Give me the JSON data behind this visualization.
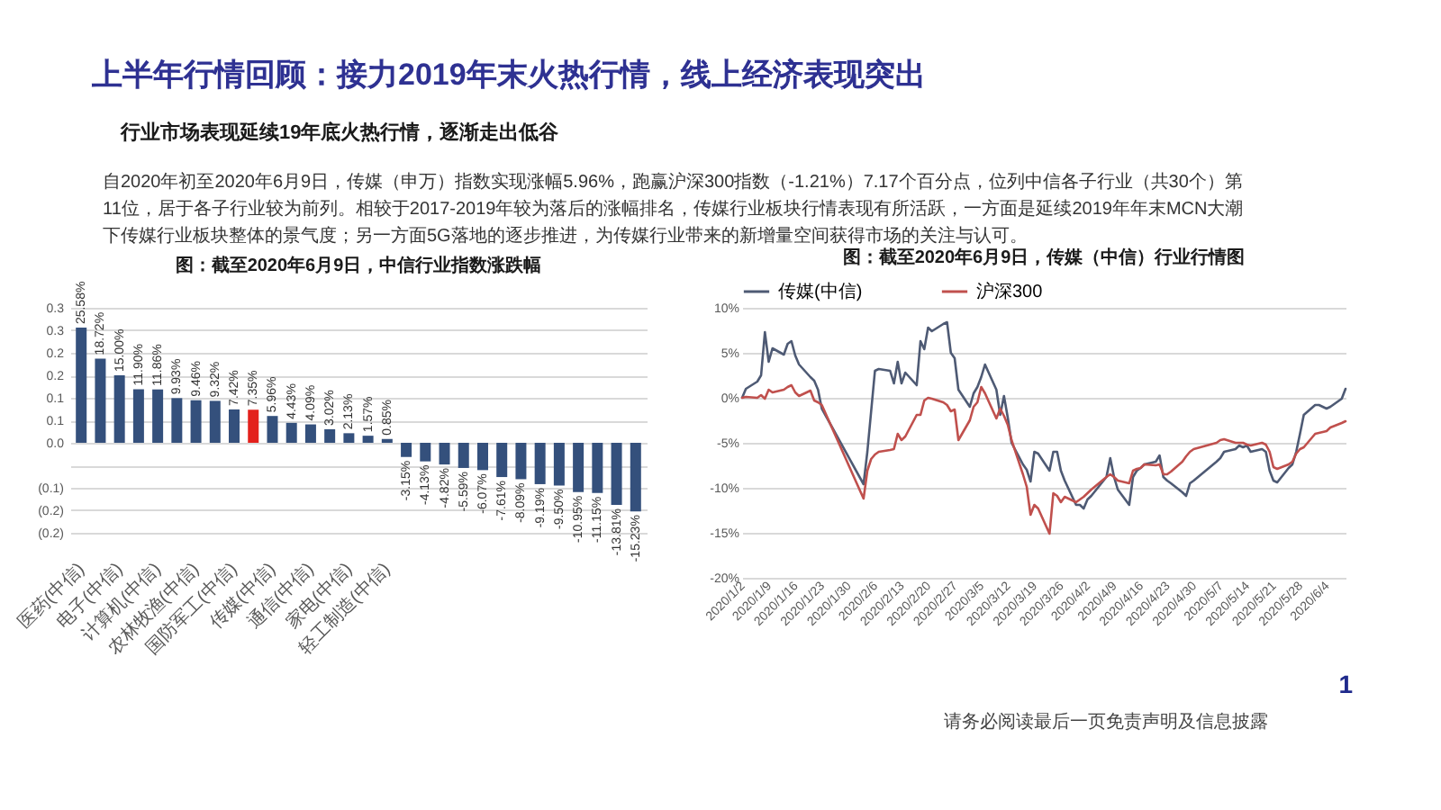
{
  "chart_data": [
    {
      "type": "other",
      "title": "上半年行情回顾：接力2019年末火热行情，线上经济表现突出",
      "subtitle": "行业市场表现延续19年底火热行情，逐渐走出低谷",
      "annotations": [
        "自2020年初至2020年6月9日，传媒（申万）指数实现涨幅5.96%，跑赢沪深300指数（-1.21%）7.17个百分点，位列中信各子行业（共30个）第",
        "11位，居于各子行业较为前列。相较于2017-2019年较为落后的涨幅排名，传媒行业板块行情表现有所活跃，一方面是延续2019年年末MCN大潮",
        "下传媒行业板块整体的景气度；另一方面5G落地的逐步推进，为传媒行业带来的新增量空间获得市场的关注与认可。"
      ]
    },
    {
      "type": "bar",
      "title": "图：截至2020年6月9日，中信行业指数涨跌幅",
      "categories": [
        "医药(中信)",
        null,
        "电子(中信)",
        null,
        "计算机(中信)",
        null,
        "农林牧渔(中信)",
        null,
        "国防军工(中信)",
        null,
        "传媒(中信)",
        null,
        "通信(中信)",
        null,
        "家电(中信)",
        null,
        "轻工制造(中信)",
        null,
        null,
        null,
        null,
        null,
        null,
        null,
        null,
        null,
        null,
        null,
        null,
        null
      ],
      "values": [
        0.2558,
        0.1872,
        0.15,
        0.119,
        0.1186,
        0.0993,
        0.0946,
        0.0932,
        0.0742,
        0.0735,
        0.0596,
        0.0443,
        0.0409,
        0.0302,
        0.0213,
        0.0157,
        0.0085,
        -0.0315,
        -0.0413,
        -0.0482,
        -0.0559,
        -0.0607,
        -0.0761,
        -0.0809,
        -0.0919,
        -0.095,
        -0.1095,
        -0.1115,
        -0.1381,
        -0.1523
      ],
      "value_labels": [
        "25.58%",
        "18.72%",
        "15.00%",
        "11.90%",
        "11.86%",
        "9.93%",
        "9.46%",
        "9.32%",
        "7.42%",
        "7.35%",
        "5.96%",
        "4.43%",
        "4.09%",
        "3.02%",
        "2.13%",
        "1.57%",
        "0.85%",
        "-3.15%",
        "-4.13%",
        "-4.82%",
        "-5.59%",
        "-6.07%",
        "-7.61%",
        "-8.09%",
        "-9.19%",
        "-9.50%",
        "-10.95%",
        "-11.15%",
        "-13.81%",
        "-15.23%"
      ],
      "colors": [
        "#34507c",
        "#34507c",
        "#34507c",
        "#34507c",
        "#34507c",
        "#34507c",
        "#34507c",
        "#34507c",
        "#34507c",
        "#e3211c",
        "#34507c",
        "#34507c",
        "#34507c",
        "#34507c",
        "#34507c",
        "#34507c",
        "#34507c",
        "#34507c",
        "#34507c",
        "#34507c",
        "#34507c",
        "#34507c",
        "#34507c",
        "#34507c",
        "#34507c",
        "#34507c",
        "#34507c",
        "#34507c",
        "#34507c",
        "#34507c"
      ],
      "ylim": [
        -0.2,
        0.3
      ],
      "yticks": [
        {
          "value": -0.2,
          "label": "(0.2)"
        },
        {
          "value": -0.15,
          "label": "(0.2)"
        },
        {
          "value": -0.1,
          "label": "(0.1)"
        },
        {
          "value": -0.05,
          "label": null
        },
        {
          "value": 0,
          "label": "0.0"
        },
        {
          "value": 0.05,
          "label": "0.1"
        },
        {
          "value": 0.1,
          "label": "0.1"
        },
        {
          "value": 0.15,
          "label": "0.2"
        },
        {
          "value": 0.2,
          "label": "0.2"
        },
        {
          "value": 0.25,
          "label": "0.3"
        },
        {
          "value": 0.3,
          "label": "0.3"
        }
      ],
      "grid": "y"
    },
    {
      "type": "line",
      "title": "图：截至2020年6月9日，传媒（中信）行业行情图",
      "x": [
        "2020-01-02",
        "2020-01-03",
        "2020-01-06",
        "2020-01-07",
        "2020-01-08",
        "2020-01-09",
        "2020-01-10",
        "2020-01-13",
        "2020-01-14",
        "2020-01-15",
        "2020-01-16",
        "2020-01-17",
        "2020-01-20",
        "2020-01-21",
        "2020-01-22",
        "2020-01-23",
        "2020-02-03",
        "2020-02-04",
        "2020-02-05",
        "2020-02-06",
        "2020-02-07",
        "2020-02-10",
        "2020-02-11",
        "2020-02-12",
        "2020-02-13",
        "2020-02-14",
        "2020-02-17",
        "2020-02-18",
        "2020-02-19",
        "2020-02-20",
        "2020-02-21",
        "2020-02-24",
        "2020-02-25",
        "2020-02-26",
        "2020-02-27",
        "2020-02-28",
        "2020-03-02",
        "2020-03-03",
        "2020-03-04",
        "2020-03-05",
        "2020-03-06",
        "2020-03-09",
        "2020-03-10",
        "2020-03-11",
        "2020-03-12",
        "2020-03-13",
        "2020-03-16",
        "2020-03-17",
        "2020-03-18",
        "2020-03-19",
        "2020-03-20",
        "2020-03-23",
        "2020-03-24",
        "2020-03-25",
        "2020-03-26",
        "2020-03-27",
        "2020-03-30",
        "2020-03-31",
        "2020-04-01",
        "2020-04-02",
        "2020-04-03",
        "2020-04-07",
        "2020-04-08",
        "2020-04-09",
        "2020-04-10",
        "2020-04-13",
        "2020-04-14",
        "2020-04-15",
        "2020-04-16",
        "2020-04-17",
        "2020-04-20",
        "2020-04-21",
        "2020-04-22",
        "2020-04-23",
        "2020-04-24",
        "2020-04-27",
        "2020-04-28",
        "2020-04-29",
        "2020-04-30",
        "2020-05-06",
        "2020-05-07",
        "2020-05-08",
        "2020-05-11",
        "2020-05-12",
        "2020-05-13",
        "2020-05-14",
        "2020-05-15",
        "2020-05-18",
        "2020-05-19",
        "2020-05-20",
        "2020-05-21",
        "2020-05-22",
        "2020-05-25",
        "2020-05-26",
        "2020-05-27",
        "2020-05-28",
        "2020-05-29",
        "2020-06-01",
        "2020-06-02",
        "2020-06-03",
        "2020-06-04",
        "2020-06-05",
        "2020-06-08",
        "2020-06-09"
      ],
      "series": [
        {
          "name": "传媒(中信)",
          "color": "#4e5a74",
          "values": [
            0,
            1.0,
            1.8,
            2.5,
            7.3,
            4.0,
            5.5,
            4.8,
            6.0,
            6.3,
            4.7,
            3.7,
            2.3,
            1.9,
            0.9,
            -1.2,
            -9.6,
            -6.0,
            -1.5,
            3.0,
            3.2,
            3.0,
            1.6,
            4.0,
            1.6,
            2.8,
            1.4,
            6.3,
            5.4,
            7.8,
            7.4,
            8.2,
            8.4,
            5.0,
            4.4,
            0.9,
            -1.0,
            0.5,
            1.2,
            2.3,
            3.7,
            0.9,
            -1.9,
            0.2,
            -2.2,
            -5.0,
            -7.4,
            -8.0,
            -9.3,
            -6.0,
            -6.2,
            -8.1,
            -6.0,
            -6.0,
            -8.1,
            -9.2,
            -11.9,
            -11.9,
            -12.3,
            -11.3,
            -10.9,
            -8.8,
            -6.7,
            -8.8,
            -10.2,
            -11.9,
            -8.8,
            -8.1,
            -7.8,
            -7.4,
            -7.1,
            -6.4,
            -8.8,
            -9.2,
            -9.5,
            -10.5,
            -10.9,
            -9.5,
            -9.2,
            -7.1,
            -6.7,
            -6.0,
            -5.7,
            -5.3,
            -5.5,
            -5.3,
            -6.0,
            -5.7,
            -6.0,
            -8.1,
            -9.2,
            -9.4,
            -7.8,
            -7.4,
            -6.0,
            -4.0,
            -1.9,
            -0.8,
            -0.8,
            -1.0,
            -1.2,
            -1.0,
            -0.1,
            1.0
          ]
        },
        {
          "name": "沪深300",
          "color": "#c0504d",
          "values": [
            0,
            0.1,
            0,
            0.3,
            -0.1,
            0.9,
            0.6,
            0.9,
            1.2,
            1.4,
            0.6,
            0.2,
            0.8,
            -0.3,
            -0.5,
            -0.8,
            -11.2,
            -8.1,
            -6.8,
            -6.3,
            -6.0,
            -5.8,
            -5.7,
            -4.0,
            -4.7,
            -4.3,
            -1.9,
            -1.9,
            -0.3,
            0,
            -0.1,
            -0.5,
            -0.8,
            -1.5,
            -1.3,
            -4.7,
            -2.5,
            -1.0,
            -0.5,
            1.2,
            0.5,
            -2.3,
            -1.2,
            -2.0,
            -3.0,
            -4.7,
            -8.5,
            -9.9,
            -13.0,
            -11.9,
            -12.3,
            -15.1,
            -10.6,
            -10.9,
            -11.6,
            -11.0,
            -11.6,
            -11.3,
            -11.0,
            -10.6,
            -10.2,
            -8.8,
            -8.5,
            -8.8,
            -9.2,
            -9.5,
            -8.1,
            -7.9,
            -7.8,
            -7.4,
            -7.5,
            -7.4,
            -8.5,
            -8.5,
            -8.2,
            -7.1,
            -6.5,
            -6.0,
            -5.7,
            -5.0,
            -4.7,
            -4.6,
            -5.0,
            -5.0,
            -5.0,
            -5.2,
            -5.3,
            -5.0,
            -5.2,
            -6.0,
            -7.7,
            -7.9,
            -7.4,
            -7.1,
            -6.2,
            -5.7,
            -5.5,
            -4.0,
            -3.9,
            -3.8,
            -3.7,
            -3.3,
            -2.8,
            -2.6
          ]
        }
      ],
      "xlim": [
        "2020-01-02",
        "2020-06-09"
      ],
      "xticks": [
        {
          "value": "2020-01-02",
          "label": "2020/1/2"
        },
        {
          "value": "2020-01-09",
          "label": "2020/1/9"
        },
        {
          "value": "2020-01-16",
          "label": "2020/1/16"
        },
        {
          "value": "2020-01-23",
          "label": "2020/1/23"
        },
        {
          "value": "2020-01-30",
          "label": "2020/1/30"
        },
        {
          "value": "2020-02-06",
          "label": "2020/2/6"
        },
        {
          "value": "2020-02-13",
          "label": "2020/2/13"
        },
        {
          "value": "2020-02-20",
          "label": "2020/2/20"
        },
        {
          "value": "2020-02-27",
          "label": "2020/2/27"
        },
        {
          "value": "2020-03-05",
          "label": "2020/3/5"
        },
        {
          "value": "2020-03-12",
          "label": "2020/3/12"
        },
        {
          "value": "2020-03-19",
          "label": "2020/3/19"
        },
        {
          "value": "2020-03-26",
          "label": "2020/3/26"
        },
        {
          "value": "2020-04-02",
          "label": "2020/4/2"
        },
        {
          "value": "2020-04-09",
          "label": "2020/4/9"
        },
        {
          "value": "2020-04-16",
          "label": "2020/4/16"
        },
        {
          "value": "2020-04-23",
          "label": "2020/4/23"
        },
        {
          "value": "2020-04-30",
          "label": "2020/4/30"
        },
        {
          "value": "2020-05-07",
          "label": "2020/5/7"
        },
        {
          "value": "2020-05-14",
          "label": "2020/5/14"
        },
        {
          "value": "2020-05-21",
          "label": "2020/5/21"
        },
        {
          "value": "2020-05-28",
          "label": "2020/5/28"
        },
        {
          "value": "2020-06-04",
          "label": "2020/6/4"
        }
      ],
      "ylim": [
        -20,
        10
      ],
      "yticks": [
        {
          "value": -20,
          "label": "-20%"
        },
        {
          "value": -15,
          "label": "-15%"
        },
        {
          "value": -10,
          "label": "-10%"
        },
        {
          "value": -5,
          "label": "-5%"
        },
        {
          "value": 0,
          "label": "0%"
        },
        {
          "value": 5,
          "label": "5%"
        },
        {
          "value": 10,
          "label": "10%"
        }
      ],
      "grid": "y",
      "legend": "top"
    },
    {
      "type": "other",
      "annotations": [
        "1",
        "请务必阅读最后一页免责声明及信息披露"
      ]
    }
  ]
}
